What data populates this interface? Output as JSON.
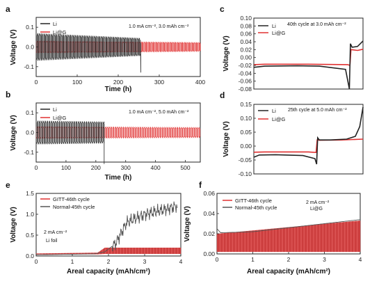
{
  "colors": {
    "Li": "#222222",
    "Li@G": "#e03030",
    "GITT": "#e03030",
    "Normal": "#555555"
  },
  "chart_data": [
    {
      "panel": "a",
      "type": "line",
      "xlabel": "Time (h)",
      "ylabel": "Voltage (V)",
      "xlim": [
        0,
        400
      ],
      "ylim": [
        -0.15,
        0.15
      ],
      "xticks": [
        "0",
        "100",
        "200",
        "300",
        "400"
      ],
      "yticks": [
        "0.1",
        "0.0",
        "-0.1"
      ],
      "annotation": "1.0 mA cm⁻², 3.0 mAh cm⁻²",
      "legend": [
        "Li",
        "Li@G"
      ],
      "legend_position": "top-left",
      "series": [
        {
          "name": "Li",
          "color": "#222222",
          "x_end": 255,
          "amplitude_start": 0.07,
          "amplitude_end": 0.045,
          "spike_at_end": -0.13
        },
        {
          "name": "Li@G",
          "color": "#e03030",
          "x_end": 400,
          "amplitude_start": 0.03,
          "amplitude_end": 0.022
        }
      ]
    },
    {
      "panel": "b",
      "type": "line",
      "xlabel": "Time (h)",
      "ylabel": "Voltage (V)",
      "xlim": [
        0,
        550
      ],
      "ylim": [
        -0.15,
        0.15
      ],
      "xticks": [
        "0",
        "100",
        "200",
        "300",
        "400",
        "500"
      ],
      "yticks": [
        "0.1",
        "0.0",
        "-0.1"
      ],
      "annotation": "1.0 mA cm⁻², 5.0 mAh cm⁻²",
      "legend": [
        "Li",
        "Li@G"
      ],
      "legend_position": "top-left",
      "series": [
        {
          "name": "Li",
          "color": "#222222",
          "x_end": 228,
          "amplitude_start": 0.06,
          "amplitude_end": 0.055,
          "spike_at_end": -0.16
        },
        {
          "name": "Li@G",
          "color": "#e03030",
          "x_end": 550,
          "amplitude_start": 0.03,
          "amplitude_end": 0.025
        }
      ]
    },
    {
      "panel": "c",
      "type": "line",
      "xlabel": "",
      "ylabel": "Voltage (V)",
      "xlim": [
        0,
        1
      ],
      "ylim": [
        -0.08,
        0.1
      ],
      "yticks": [
        "0.10",
        "0.08",
        "0.06",
        "0.04",
        "0.02",
        "0.00",
        "-0.02",
        "-0.04",
        "-0.06",
        "-0.08"
      ],
      "annotation": "40th cycle at 3.0 mAh cm⁻²",
      "legend": [
        "Li",
        "Li@G"
      ],
      "legend_position": "top-left",
      "series": [
        {
          "name": "Li",
          "color": "#222222",
          "x": [
            0,
            0.1,
            0.4,
            0.6,
            0.84,
            0.875,
            0.885,
            0.9,
            0.95,
            1.0
          ],
          "y": [
            -0.025,
            -0.022,
            -0.021,
            -0.022,
            -0.03,
            -0.08,
            0.035,
            0.026,
            0.028,
            0.042
          ]
        },
        {
          "name": "Li@G",
          "color": "#e03030",
          "x": [
            0,
            0.1,
            0.5,
            0.86,
            0.88,
            0.89,
            0.95,
            1.0
          ],
          "y": [
            -0.018,
            -0.017,
            -0.017,
            -0.018,
            -0.02,
            0.02,
            0.018,
            0.021
          ]
        }
      ]
    },
    {
      "panel": "d",
      "type": "line",
      "xlabel": "",
      "ylabel": "Voltage (V)",
      "xlim": [
        0,
        1
      ],
      "ylim": [
        -0.1,
        0.15
      ],
      "yticks": [
        "0.15",
        "0.10",
        "0.05",
        "0.00",
        "-0.05",
        "-0.10"
      ],
      "annotation": "25th cycle at 5.0 mAh cm⁻²",
      "legend": [
        "Li",
        "Li@G"
      ],
      "legend_position": "top-left",
      "series": [
        {
          "name": "Li",
          "color": "#222222",
          "x": [
            0,
            0.05,
            0.2,
            0.45,
            0.56,
            0.575,
            0.585,
            0.6,
            0.7,
            0.85,
            0.93,
            0.97,
            1.0
          ],
          "y": [
            -0.04,
            -0.032,
            -0.031,
            -0.034,
            -0.045,
            -0.065,
            0.03,
            0.022,
            0.022,
            0.025,
            0.035,
            0.07,
            0.14
          ]
        },
        {
          "name": "Li@G",
          "color": "#e03030",
          "x": [
            0,
            0.1,
            0.5,
            0.57,
            0.58,
            0.6,
            0.8,
            1.0
          ],
          "y": [
            -0.022,
            -0.021,
            -0.021,
            -0.023,
            0.022,
            0.021,
            0.022,
            0.025
          ]
        }
      ]
    },
    {
      "panel": "e",
      "type": "line",
      "xlabel": "Areal capacity (mAh/cm²)",
      "ylabel": "Voltage (V)",
      "xlim": [
        0,
        4
      ],
      "ylim": [
        0,
        1.5
      ],
      "xticks": [
        "0",
        "1",
        "2",
        "3",
        "4"
      ],
      "yticks": [
        "0.0",
        "0.5",
        "1.0",
        "1.5"
      ],
      "annotation": "2 mA cm⁻²",
      "annotation2": "Li foil",
      "legend": [
        "GITT-46th cycle",
        "Normal-45th cycle"
      ],
      "legend_position": "top-left",
      "series": [
        {
          "name": "GITT-46th cycle",
          "color": "#e03030",
          "x": [
            0,
            1.7,
            1.9,
            4.0
          ],
          "y_low": [
            0.04,
            0.04,
            0.05,
            0.05
          ],
          "y_high": [
            0.06,
            0.08,
            0.2,
            0.2
          ]
        },
        {
          "name": "Normal-45th cycle",
          "color": "#555555",
          "x": [
            0,
            1.6,
            1.9,
            2.2,
            2.5,
            3.0,
            3.5,
            3.9
          ],
          "y": [
            0.03,
            0.05,
            0.1,
            0.3,
            0.8,
            1.0,
            1.1,
            1.2
          ]
        }
      ]
    },
    {
      "panel": "f",
      "type": "line",
      "xlabel": "Areal capacity (mAh/cm²)",
      "ylabel": "Voltage (V)",
      "xlim": [
        0,
        4
      ],
      "ylim": [
        0,
        0.06
      ],
      "xticks": [
        "0",
        "1",
        "2",
        "3",
        "4"
      ],
      "yticks": [
        "0.00",
        "0.02",
        "0.04",
        "0.06"
      ],
      "annotation": "2 mA cm⁻²",
      "annotation2": "Li@G",
      "legend": [
        "GITT-46th cycle",
        "Normal-45th cycle"
      ],
      "legend_position": "top-left",
      "series": [
        {
          "name": "GITT-46th cycle",
          "color": "#e03030",
          "x": [
            0,
            4.0
          ],
          "y_low": [
            0.002,
            0.002
          ],
          "y_high": [
            0.02,
            0.033
          ]
        },
        {
          "name": "Normal-45th cycle",
          "color": "#555555",
          "x": [
            0,
            0.1,
            1.0,
            2.0,
            3.0,
            4.0
          ],
          "y": [
            0.025,
            0.021,
            0.022,
            0.026,
            0.03,
            0.034
          ]
        }
      ]
    }
  ]
}
